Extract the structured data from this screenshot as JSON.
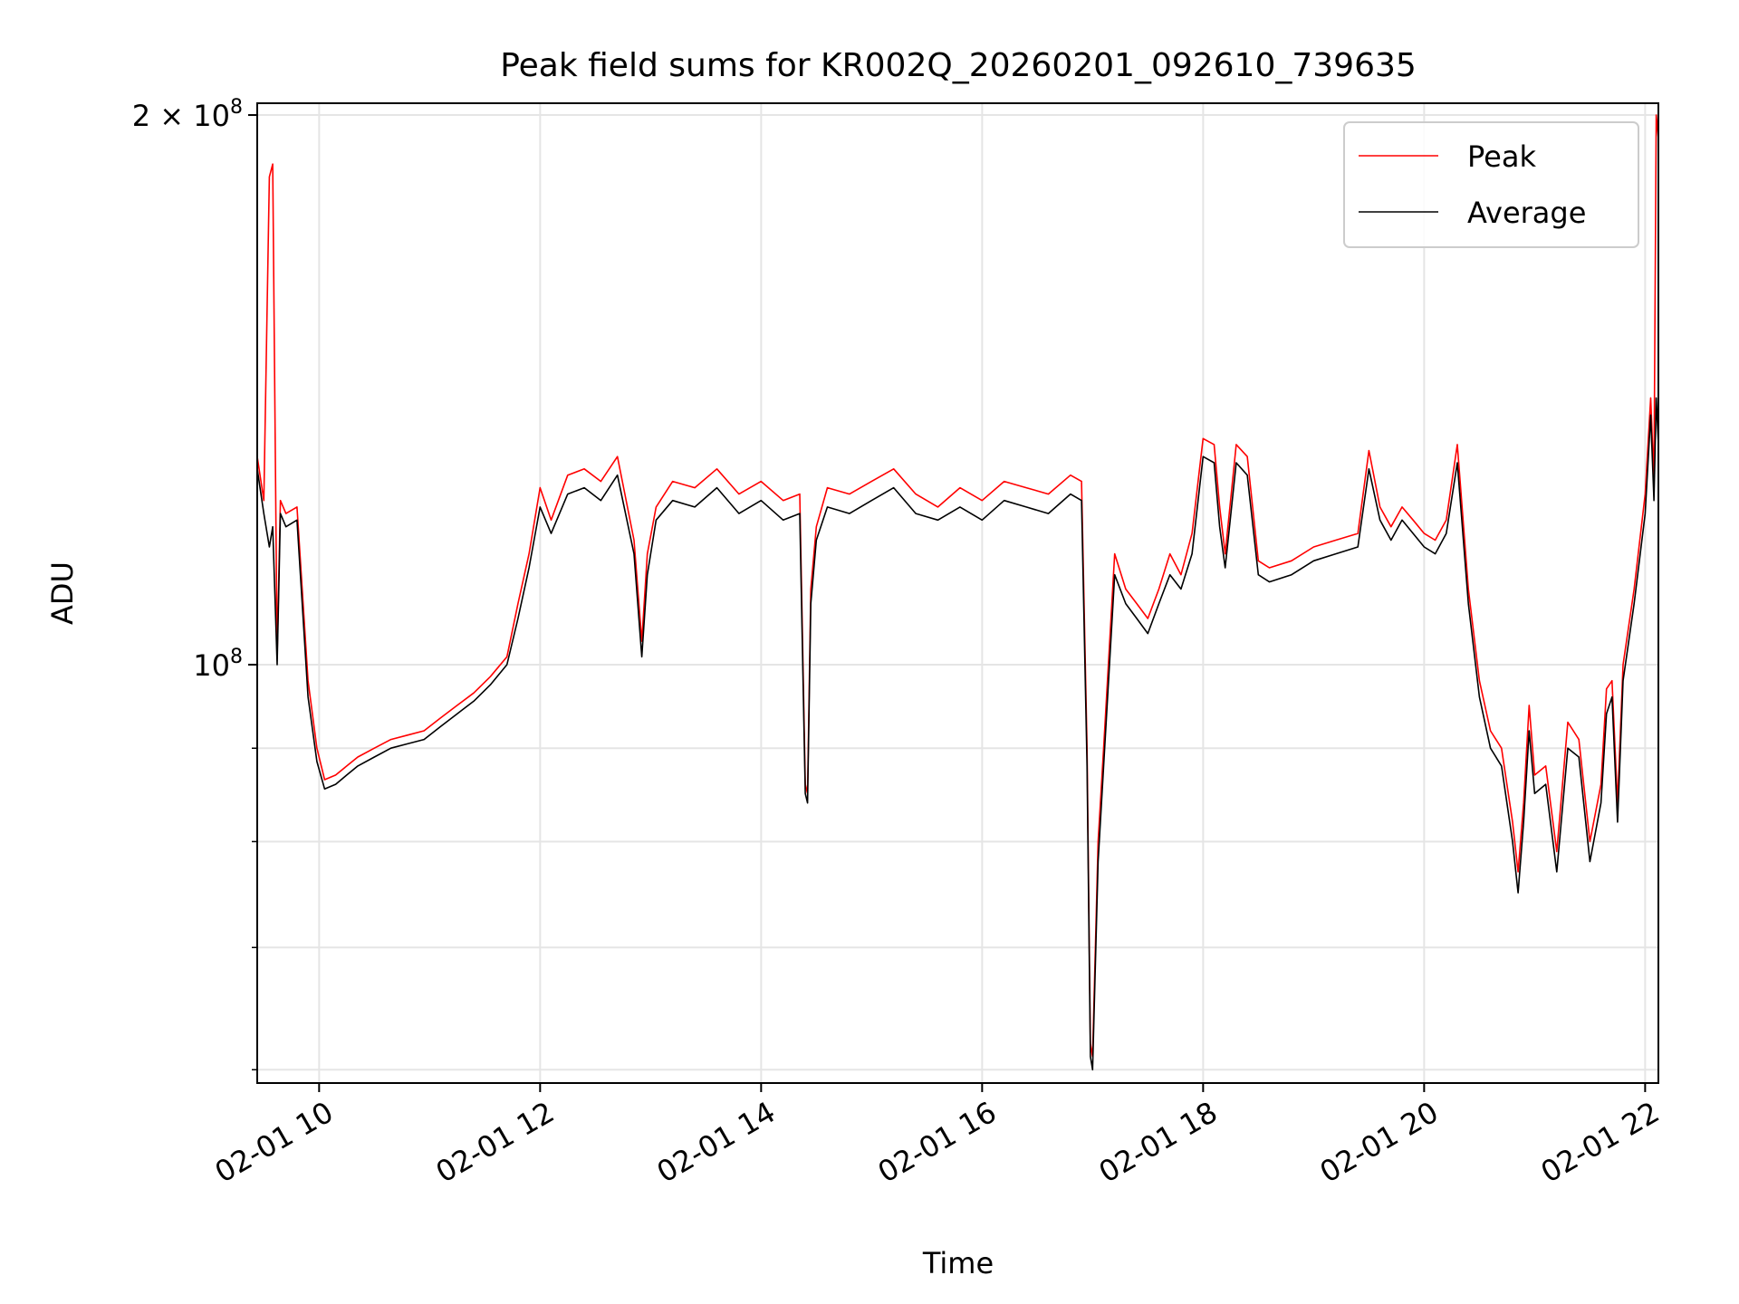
{
  "chart_data": {
    "type": "line",
    "title": "Peak field sums for KR002Q_20260201_092610_739635",
    "xlabel": "Time",
    "ylabel": "ADU",
    "yscale": "log",
    "xlim_hours": [
      9.44,
      22.12
    ],
    "ylim": [
      59000000,
      203000000
    ],
    "x_ticks": [
      {
        "hour": 10,
        "label": "02-01 10"
      },
      {
        "hour": 12,
        "label": "02-01 12"
      },
      {
        "hour": 14,
        "label": "02-01 14"
      },
      {
        "hour": 16,
        "label": "02-01 16"
      },
      {
        "hour": 18,
        "label": "02-01 18"
      },
      {
        "hour": 20,
        "label": "02-01 20"
      },
      {
        "hour": 22,
        "label": "02-01 22"
      }
    ],
    "y_major_ticks": [
      {
        "value": 100000000,
        "base": "10",
        "exp": "8",
        "prefix": ""
      },
      {
        "value": 200000000,
        "base": "10",
        "exp": "8",
        "prefix": "2 × "
      }
    ],
    "y_minor_ticks": [
      60000000,
      70000000,
      80000000,
      90000000
    ],
    "grid": true,
    "legend_position": "top-right",
    "series": [
      {
        "name": "Peak",
        "color": "#ff0000",
        "x": [
          9.44,
          9.5,
          9.55,
          9.58,
          9.62,
          9.65,
          9.7,
          9.8,
          9.9,
          9.98,
          10.05,
          10.15,
          10.25,
          10.35,
          10.5,
          10.65,
          10.8,
          10.95,
          11.1,
          11.25,
          11.4,
          11.55,
          11.7,
          11.8,
          11.9,
          12.0,
          12.1,
          12.25,
          12.4,
          12.55,
          12.7,
          12.85,
          12.92,
          12.97,
          13.05,
          13.2,
          13.4,
          13.6,
          13.8,
          14.0,
          14.2,
          14.35,
          14.4,
          14.42,
          14.45,
          14.5,
          14.6,
          14.8,
          15.0,
          15.2,
          15.4,
          15.6,
          15.8,
          16.0,
          16.2,
          16.4,
          16.6,
          16.8,
          16.9,
          16.95,
          16.98,
          17.0,
          17.05,
          17.1,
          17.2,
          17.3,
          17.4,
          17.5,
          17.6,
          17.7,
          17.8,
          17.9,
          18.0,
          18.1,
          18.15,
          18.2,
          18.3,
          18.4,
          18.5,
          18.6,
          18.8,
          19.0,
          19.2,
          19.4,
          19.5,
          19.6,
          19.7,
          19.8,
          19.9,
          20.0,
          20.1,
          20.2,
          20.3,
          20.4,
          20.5,
          20.6,
          20.7,
          20.8,
          20.85,
          20.9,
          20.95,
          21.0,
          21.1,
          21.2,
          21.3,
          21.4,
          21.5,
          21.6,
          21.65,
          21.7,
          21.75,
          21.8,
          21.9,
          22.0,
          22.05,
          22.08,
          22.1,
          22.12
        ],
        "values": [
          130000000,
          123000000,
          185000000,
          188000000,
          101000000,
          123000000,
          121000000,
          122000000,
          98000000,
          90000000,
          86500000,
          87000000,
          88000000,
          89000000,
          90000000,
          91000000,
          91500000,
          92000000,
          93500000,
          95000000,
          96500000,
          98500000,
          101000000,
          108000000,
          115000000,
          125000000,
          120000000,
          127000000,
          128000000,
          126000000,
          130000000,
          117000000,
          103000000,
          115000000,
          122000000,
          126000000,
          125000000,
          128000000,
          124000000,
          126000000,
          123000000,
          124000000,
          86000000,
          85000000,
          110000000,
          119000000,
          125000000,
          124000000,
          126000000,
          128000000,
          124000000,
          122000000,
          125000000,
          123000000,
          126000000,
          125000000,
          124000000,
          127000000,
          126000000,
          90000000,
          62000000,
          61000000,
          80000000,
          90000000,
          115000000,
          110000000,
          108000000,
          106000000,
          110000000,
          115000000,
          112000000,
          118000000,
          133000000,
          132000000,
          122000000,
          115000000,
          132000000,
          130000000,
          114000000,
          113000000,
          114000000,
          116000000,
          117000000,
          118000000,
          131000000,
          122000000,
          119000000,
          122000000,
          120000000,
          118000000,
          117000000,
          120000000,
          132000000,
          110000000,
          98000000,
          92000000,
          90000000,
          82000000,
          77000000,
          84000000,
          95000000,
          87000000,
          88000000,
          79000000,
          93000000,
          91000000,
          80000000,
          86000000,
          97000000,
          98000000,
          84000000,
          100000000,
          110000000,
          124000000,
          140000000,
          126000000,
          200000000,
          194000000
        ]
      },
      {
        "name": "Average",
        "color": "#000000",
        "x": [
          9.44,
          9.5,
          9.55,
          9.58,
          9.62,
          9.65,
          9.7,
          9.8,
          9.9,
          9.98,
          10.05,
          10.15,
          10.25,
          10.35,
          10.5,
          10.65,
          10.8,
          10.95,
          11.1,
          11.25,
          11.4,
          11.55,
          11.7,
          11.8,
          11.9,
          12.0,
          12.1,
          12.25,
          12.4,
          12.55,
          12.7,
          12.85,
          12.92,
          12.97,
          13.05,
          13.2,
          13.4,
          13.6,
          13.8,
          14.0,
          14.2,
          14.35,
          14.4,
          14.42,
          14.45,
          14.5,
          14.6,
          14.8,
          15.0,
          15.2,
          15.4,
          15.6,
          15.8,
          16.0,
          16.2,
          16.4,
          16.6,
          16.8,
          16.9,
          16.95,
          16.98,
          17.0,
          17.05,
          17.1,
          17.2,
          17.3,
          17.4,
          17.5,
          17.6,
          17.7,
          17.8,
          17.9,
          18.0,
          18.1,
          18.15,
          18.2,
          18.3,
          18.4,
          18.5,
          18.6,
          18.8,
          19.0,
          19.2,
          19.4,
          19.5,
          19.6,
          19.7,
          19.8,
          19.9,
          20.0,
          20.1,
          20.2,
          20.3,
          20.4,
          20.5,
          20.6,
          20.7,
          20.8,
          20.85,
          20.9,
          20.95,
          21.0,
          21.1,
          21.2,
          21.3,
          21.4,
          21.5,
          21.6,
          21.65,
          21.7,
          21.75,
          21.8,
          21.9,
          22.0,
          22.05,
          22.08,
          22.1,
          22.12
        ],
        "values": [
          128000000,
          121000000,
          116000000,
          119000000,
          100000000,
          121000000,
          119000000,
          120000000,
          96000000,
          88500000,
          85500000,
          86000000,
          87000000,
          88000000,
          89000000,
          90000000,
          90500000,
          91000000,
          92500000,
          94000000,
          95500000,
          97500000,
          100000000,
          106000000,
          113000000,
          122000000,
          118000000,
          124000000,
          125000000,
          123000000,
          127000000,
          115000000,
          101000000,
          112000000,
          120000000,
          123000000,
          122000000,
          125000000,
          121000000,
          123000000,
          120000000,
          121000000,
          85000000,
          84000000,
          108000000,
          117000000,
          122000000,
          121000000,
          123000000,
          125000000,
          121000000,
          120000000,
          122000000,
          120000000,
          123000000,
          122000000,
          121000000,
          124000000,
          123000000,
          88000000,
          61000000,
          60000000,
          78000000,
          88000000,
          112000000,
          108000000,
          106000000,
          104000000,
          108000000,
          112000000,
          110000000,
          115000000,
          130000000,
          129000000,
          119000000,
          113000000,
          129000000,
          127000000,
          112000000,
          111000000,
          112000000,
          114000000,
          115000000,
          116000000,
          128000000,
          120000000,
          117000000,
          120000000,
          118000000,
          116000000,
          115000000,
          118000000,
          129000000,
          108000000,
          96000000,
          90000000,
          88000000,
          80000000,
          75000000,
          82000000,
          92000000,
          85000000,
          86000000,
          77000000,
          90000000,
          89000000,
          78000000,
          84000000,
          94000000,
          96000000,
          82000000,
          98000000,
          108000000,
          121000000,
          137000000,
          123000000,
          140000000,
          132000000
        ]
      }
    ]
  }
}
